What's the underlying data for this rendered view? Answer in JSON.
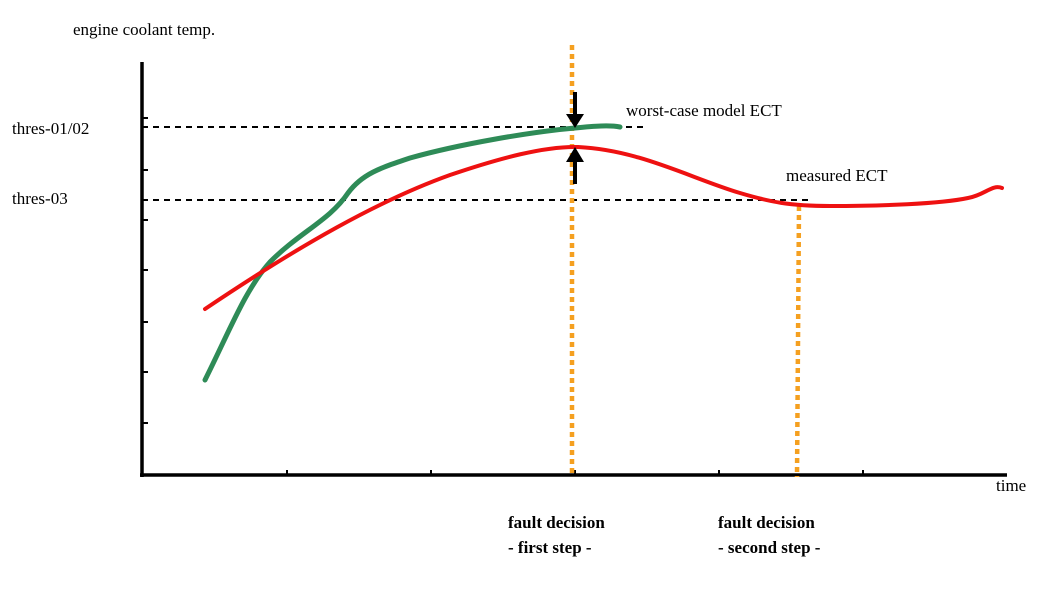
{
  "chart_data": {
    "type": "line",
    "ylabel": "engine coolant temp.",
    "xlabel": "time",
    "thresholds": [
      {
        "label": "thres-01/02"
      },
      {
        "label": "thres-03"
      }
    ],
    "series": [
      {
        "name": "worst-case model ECT",
        "color": "#2e8b57",
        "points": [
          [
            0.06,
            0.2
          ],
          [
            0.1,
            0.38
          ],
          [
            0.14,
            0.48
          ],
          [
            0.2,
            0.55
          ],
          [
            0.24,
            0.62
          ],
          [
            0.32,
            0.66
          ],
          [
            0.42,
            0.7
          ],
          [
            0.5,
            0.72
          ],
          [
            0.55,
            0.72
          ]
        ]
      },
      {
        "name": "measured ECT",
        "color": "#ee1111",
        "points": [
          [
            0.06,
            0.41
          ],
          [
            0.14,
            0.5
          ],
          [
            0.26,
            0.59
          ],
          [
            0.36,
            0.65
          ],
          [
            0.46,
            0.68
          ],
          [
            0.54,
            0.66
          ],
          [
            0.62,
            0.61
          ],
          [
            0.7,
            0.57
          ],
          [
            0.78,
            0.56
          ],
          [
            0.9,
            0.57
          ],
          [
            0.96,
            0.58
          ]
        ]
      }
    ],
    "decisions": [
      {
        "line1": "fault decision",
        "line2": "- first step -"
      },
      {
        "line1": "fault decision",
        "line2": "- second step -"
      }
    ],
    "decision_color": "#f5a020",
    "threshold_color": "#000000"
  }
}
